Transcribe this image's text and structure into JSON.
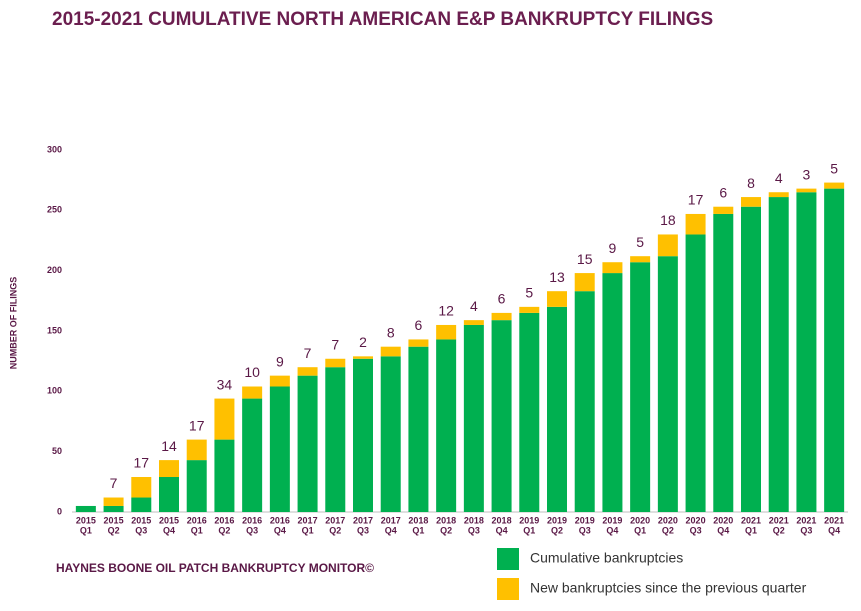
{
  "chart_data": {
    "type": "stacked_bar",
    "title": "2015-2021 CUMULATIVE NORTH AMERICAN E&P BANKRUPTCY FILINGS",
    "y_label": "NUMBER OF FILINGS",
    "footer": "HAYNES BOONE OIL PATCH BANKRUPTCY MONITOR©",
    "categories": [
      [
        "2015",
        "Q1"
      ],
      [
        "2015",
        "Q2"
      ],
      [
        "2015",
        "Q3"
      ],
      [
        "2015",
        "Q4"
      ],
      [
        "2016",
        "Q1"
      ],
      [
        "2016",
        "Q2"
      ],
      [
        "2016",
        "Q3"
      ],
      [
        "2016",
        "Q4"
      ],
      [
        "2017",
        "Q1"
      ],
      [
        "2017",
        "Q2"
      ],
      [
        "2017",
        "Q3"
      ],
      [
        "2017",
        "Q4"
      ],
      [
        "2018",
        "Q1"
      ],
      [
        "2018",
        "Q2"
      ],
      [
        "2018",
        "Q3"
      ],
      [
        "2018",
        "Q4"
      ],
      [
        "2019",
        "Q1"
      ],
      [
        "2019",
        "Q2"
      ],
      [
        "2019",
        "Q3"
      ],
      [
        "2019",
        "Q4"
      ],
      [
        "2020",
        "Q1"
      ],
      [
        "2020",
        "Q2"
      ],
      [
        "2020",
        "Q3"
      ],
      [
        "2020",
        "Q4"
      ],
      [
        "2021",
        "Q1"
      ],
      [
        "2021",
        "Q2"
      ],
      [
        "2021",
        "Q3"
      ],
      [
        "2021",
        "Q4"
      ]
    ],
    "series": [
      {
        "name": "Cumulative bankruptcies",
        "color": "#00b050",
        "values": [
          5,
          5,
          12,
          29,
          43,
          60,
          94,
          104,
          113,
          120,
          127,
          129,
          137,
          143,
          155,
          159,
          165,
          170,
          183,
          198,
          207,
          212,
          230,
          247,
          253,
          261,
          265,
          268
        ]
      },
      {
        "name": "New bankruptcies since the previous quarter",
        "color": "#ffc000",
        "values": [
          null,
          7,
          17,
          14,
          17,
          34,
          10,
          9,
          7,
          7,
          2,
          8,
          6,
          12,
          4,
          6,
          5,
          13,
          15,
          9,
          5,
          18,
          17,
          6,
          8,
          4,
          3,
          5
        ]
      }
    ],
    "ylim": [
      0,
      300
    ],
    "yticks": [
      0,
      50,
      100,
      150,
      200,
      250,
      300
    ]
  }
}
